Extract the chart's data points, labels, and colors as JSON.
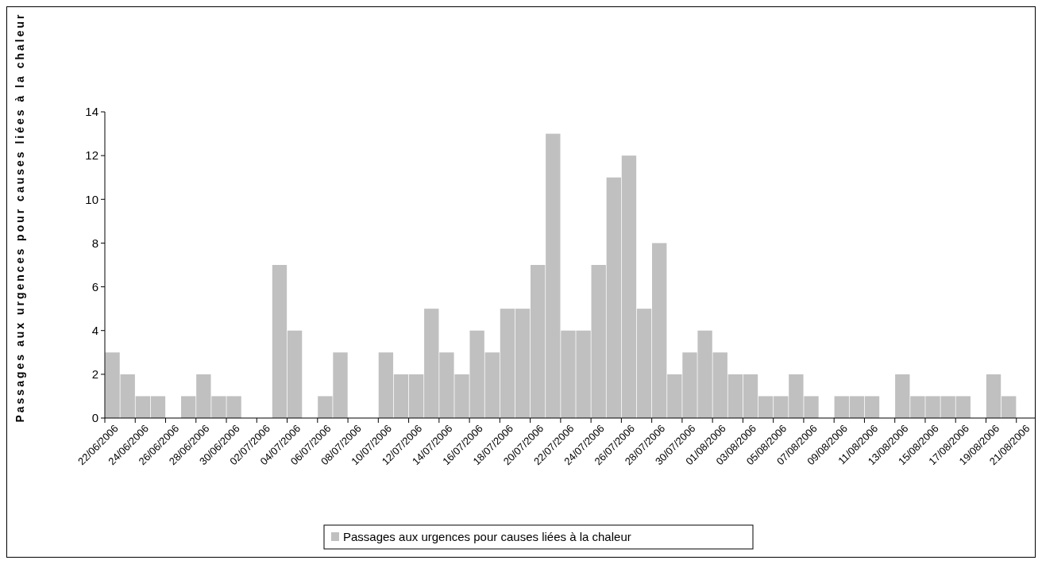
{
  "chart_data": {
    "type": "bar",
    "ylabel": "Passages aux urgences pour causes liées à la chaleur",
    "categories": [
      "22/06/2006",
      null,
      "24/06/2006",
      null,
      "26/06/2006",
      null,
      "28/06/2006",
      null,
      "30/06/2006",
      null,
      "02/07/2006",
      null,
      "04/07/2006",
      null,
      "06/07/2006",
      null,
      "08/07/2006",
      null,
      "10/07/2006",
      null,
      "12/07/2006",
      null,
      "14/07/2006",
      null,
      "16/07/2006",
      null,
      "18/07/2006",
      null,
      "20/07/2006",
      null,
      "22/07/2006",
      null,
      "24/07/2006",
      null,
      "26/07/2006",
      null,
      "28/07/2006",
      null,
      "30/07/2006",
      null,
      "01/08/2006",
      null,
      "03/08/2006",
      null,
      "05/08/2006",
      null,
      "07/08/2006",
      null,
      "09/08/2006",
      null,
      "11/08/2006",
      null,
      "13/08/2006",
      null,
      "15/08/2006",
      null,
      "17/08/2006",
      null,
      "19/08/2006",
      null,
      "21/08/2006",
      null
    ],
    "series": [
      {
        "name": "Passages aux urgences pour causes liées à la chaleur",
        "color": "#c0c0c0",
        "values": [
          3,
          2,
          1,
          1,
          0,
          1,
          2,
          1,
          1,
          0,
          0,
          7,
          4,
          0,
          1,
          3,
          0,
          0,
          3,
          2,
          2,
          5,
          3,
          2,
          4,
          3,
          5,
          5,
          7,
          13,
          4,
          4,
          7,
          11,
          12,
          5,
          8,
          2,
          3,
          4,
          3,
          2,
          2,
          1,
          1,
          2,
          1,
          0,
          1,
          1,
          1,
          0,
          2,
          1,
          1,
          1,
          1,
          0,
          2,
          1,
          0,
          0
        ]
      }
    ],
    "ylim": [
      0,
      14
    ],
    "yticks": [
      0,
      2,
      4,
      6,
      8,
      10,
      12,
      14
    ],
    "grid": false,
    "legend": "bottom"
  }
}
